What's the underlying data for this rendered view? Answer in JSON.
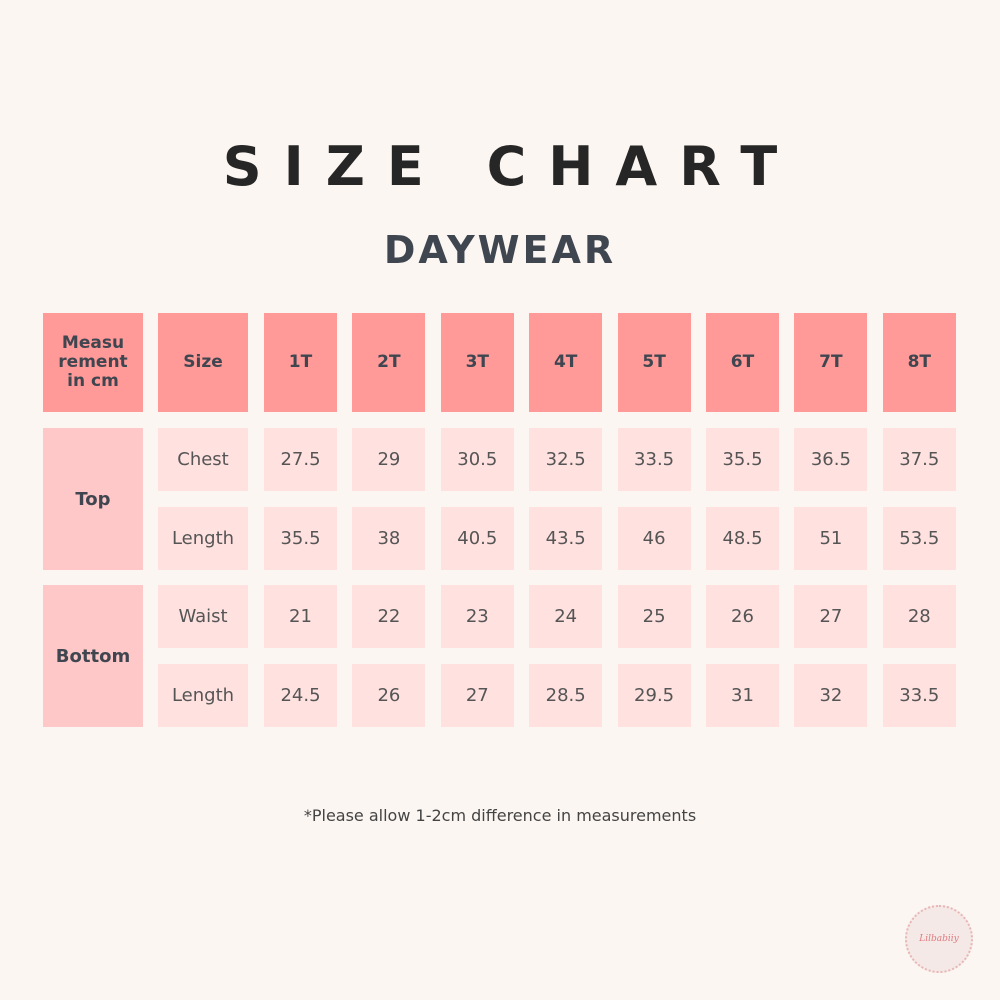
{
  "header": {
    "title": "SIZE CHART",
    "subtitle": "DAYWEAR"
  },
  "table": {
    "corner": [
      "Measu",
      "rement",
      "in cm"
    ],
    "columns": [
      "Size",
      "1T",
      "2T",
      "3T",
      "4T",
      "5T",
      "6T",
      "7T",
      "8T"
    ],
    "groups": [
      {
        "name": "Top",
        "rows": [
          {
            "label": "Chest",
            "values": [
              27.5,
              29,
              30.5,
              32.5,
              33.5,
              35.5,
              36.5,
              37.5
            ]
          },
          {
            "label": "Length",
            "values": [
              35.5,
              38,
              40.5,
              43.5,
              46,
              48.5,
              51,
              53.5
            ]
          }
        ]
      },
      {
        "name": "Bottom",
        "rows": [
          {
            "label": "Waist",
            "values": [
              21,
              22,
              23,
              24,
              25,
              26,
              27,
              28
            ]
          },
          {
            "label": "Length",
            "values": [
              24.5,
              26,
              27,
              28.5,
              29.5,
              31,
              32,
              33.5
            ]
          }
        ]
      }
    ]
  },
  "note": "*Please allow 1-2cm difference in measurements",
  "logo": "Lilbabiiy"
}
